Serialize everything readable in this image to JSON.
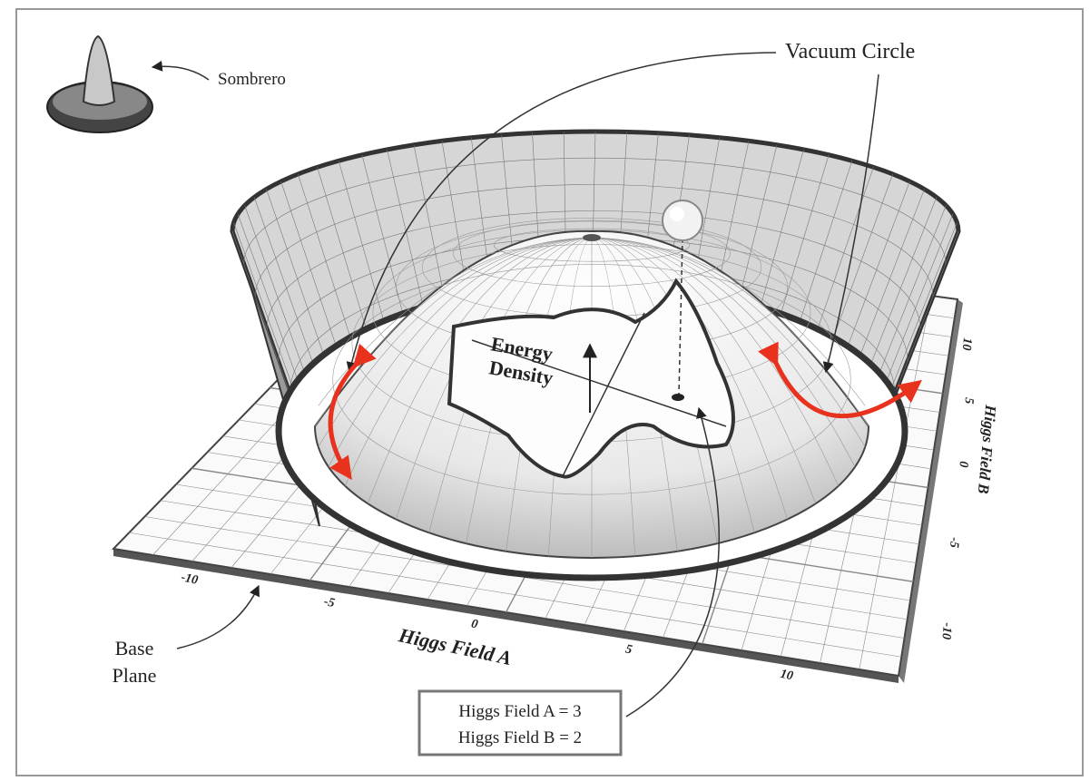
{
  "labels": {
    "sombrero": "Sombrero",
    "vacuum_circle": "Vacuum Circle",
    "energy_density": [
      "Energy",
      "Density"
    ],
    "base_plane": [
      "Base",
      "Plane"
    ]
  },
  "axes": {
    "a": {
      "title": "Higgs Field A",
      "ticks": [
        "-10",
        "-5",
        "0",
        "5",
        "10"
      ]
    },
    "b": {
      "title": "Higgs Field B",
      "ticks": [
        "10",
        "5",
        "0",
        "-5",
        "-10"
      ]
    }
  },
  "readout": [
    "Higgs Field A = 3",
    "Higgs Field B = 2"
  ]
}
